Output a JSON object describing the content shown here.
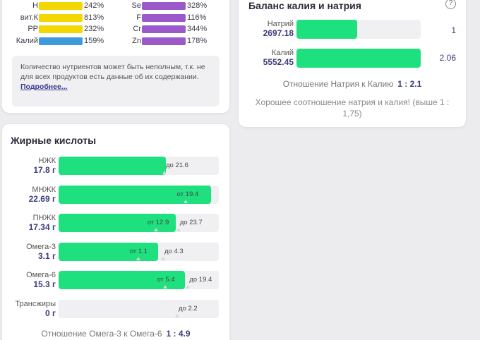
{
  "minerals": {
    "left": [
      {
        "name": "Н",
        "value": "242%",
        "color": "#f2d800"
      },
      {
        "name": "вит.К",
        "value": "813%",
        "color": "#f2d800"
      },
      {
        "name": "РР",
        "value": "232%",
        "color": "#f2d800"
      },
      {
        "name": "Калий",
        "value": "159%",
        "color": "#3d9bdc"
      }
    ],
    "right": [
      {
        "name": "Se",
        "value": "328%",
        "color": "#9b59c9"
      },
      {
        "name": "F",
        "value": "116%",
        "color": "#9b59c9"
      },
      {
        "name": "Cr",
        "value": "344%",
        "color": "#9b59c9"
      },
      {
        "name": "Zn",
        "value": "178%",
        "color": "#9b59c9"
      }
    ],
    "note_text": "Количество нутриентов может быть неполным, т.к. не для всех продуктов есть данные об их содержании.",
    "note_link": "Подробнее..."
  },
  "balance": {
    "title": "Баланс калия и натрия",
    "help_icon": "?",
    "sodium_label": "Натрий",
    "sodium_value": "2697.18",
    "sodium_ratio": "1",
    "potassium_label": "Калий",
    "potassium_value": "5552.45",
    "potassium_ratio": "2.06",
    "ratio_label": "Отношение Натрия к Калию",
    "ratio_value": "1 : 2.1",
    "comment": "Хорошее соотношение натрия и калия! (выше 1 : 1,75)"
  },
  "fatty_acids": {
    "title": "Жирные кислоты",
    "rows": [
      {
        "name": "НЖК",
        "amount": "17.8 г",
        "fill": 0.67,
        "min": "",
        "max": "до 21.6"
      },
      {
        "name": "МНЖК",
        "amount": "22.69 г",
        "fill": 0.95,
        "min": "от 19.4",
        "max": ""
      },
      {
        "name": "ПНЖК",
        "amount": "17.34 г",
        "fill": 0.73,
        "min": "от 12.9",
        "max": "до 23.7"
      },
      {
        "name": "Омега-3",
        "amount": "3.1 г",
        "fill": 0.62,
        "min": "от 1.1",
        "max": "до 4.3"
      },
      {
        "name": "Омега-6",
        "amount": "15.3 г",
        "fill": 0.79,
        "min": "от 5.4",
        "max": "до 19.4"
      },
      {
        "name": "Трансжиры",
        "amount": "0 г",
        "fill": 0,
        "min": "",
        "max": "до 2.2"
      }
    ],
    "ratio_label": "Отношение Омега-3 к Омега-6",
    "ratio_value": "1 : 4.9"
  }
}
